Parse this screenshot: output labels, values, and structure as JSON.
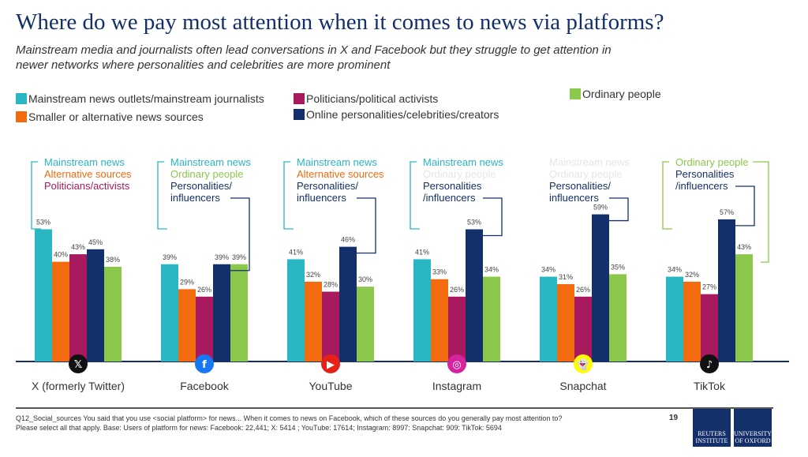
{
  "title": "Where do we pay most attention when it comes to news via platforms?",
  "subtitle": "Mainstream media and journalists often lead conversations in X and Facebook but they struggle to get attention in newer networks where personalities and celebrities are more prominent",
  "legend": [
    {
      "label": "Mainstream news outlets/mainstream journalists",
      "color": "#2ab7c4"
    },
    {
      "label": "Smaller or alternative news sources",
      "color": "#f26b0f"
    },
    {
      "label": "Politicians/political activists",
      "color": "#a8195e"
    },
    {
      "label": "Online personalities/celebrities/creators",
      "color": "#13306b"
    },
    {
      "label": "Ordinary people",
      "color": "#8cc84b"
    }
  ],
  "chart_data": {
    "type": "bar",
    "categories": [
      "X (formerly Twitter)",
      "Facebook",
      "YouTube",
      "Instagram",
      "Snapchat",
      "TikTok"
    ],
    "icons": [
      "x-logo-icon",
      "facebook-icon",
      "youtube-icon",
      "instagram-icon",
      "snapchat-icon",
      "tiktok-icon"
    ],
    "series": [
      {
        "name": "Mainstream news outlets/mainstream journalists",
        "color": "#2ab7c4",
        "values": [
          53,
          39,
          41,
          41,
          34,
          34
        ]
      },
      {
        "name": "Smaller or alternative news sources",
        "color": "#f26b0f",
        "values": [
          40,
          29,
          32,
          33,
          31,
          32
        ]
      },
      {
        "name": "Politicians/political activists",
        "color": "#a8195e",
        "values": [
          43,
          26,
          28,
          26,
          26,
          27
        ]
      },
      {
        "name": "Online personalities/celebrities/creators",
        "color": "#13306b",
        "values": [
          45,
          39,
          46,
          53,
          59,
          57
        ]
      },
      {
        "name": "Ordinary people",
        "color": "#8cc84b",
        "values": [
          38,
          39,
          30,
          34,
          35,
          43
        ]
      }
    ],
    "value_suffix": "%",
    "annotations": [
      [
        {
          "text": "Mainstream news",
          "color": "#2ab7c4"
        },
        {
          "text": "Alternative sources",
          "color": "#f26b0f"
        },
        {
          "text": "Politicians/activists",
          "color": "#a8195e"
        }
      ],
      [
        {
          "text": "Mainstream news",
          "color": "#2ab7c4"
        },
        {
          "text": "Ordinary people",
          "color": "#8cc84b"
        },
        {
          "text": "Personalities/",
          "color": "#13306b"
        },
        {
          "text": "influencers",
          "color": "#13306b"
        }
      ],
      [
        {
          "text": "Mainstream news",
          "color": "#2ab7c4"
        },
        {
          "text": "Alternative sources",
          "color": "#f26b0f"
        },
        {
          "text": "Personalities/",
          "color": "#13306b"
        },
        {
          "text": "influencers",
          "color": "#13306b"
        }
      ],
      [
        {
          "text": "Mainstream news",
          "color": "#2ab7c4"
        },
        {
          "text": "Ordinary people",
          "color": "#e6e6e6"
        },
        {
          "text": "Personalities",
          "color": "#13306b"
        },
        {
          "text": "/influencers",
          "color": "#13306b"
        }
      ],
      [
        {
          "text": "Mainstream news",
          "color": "#e6e6e6"
        },
        {
          "text": "Ordinary people",
          "color": "#e6e6e6"
        },
        {
          "text": "Personalities/",
          "color": "#13306b"
        },
        {
          "text": "influencers",
          "color": "#13306b"
        }
      ],
      [
        {
          "text": "Ordinary people",
          "color": "#8cc84b"
        },
        {
          "text": "Personalities",
          "color": "#13306b"
        },
        {
          "text": "/influencers",
          "color": "#13306b"
        }
      ]
    ]
  },
  "footnote": [
    "Q12_Social_sources You said that you use <social platform> for news... When it comes to news on Facebook, which of these sources do you generally pay most attention to?",
    "Please select all that apply. Base: Users of platform for news: Facebook: 22,441;  X: 5414 ; YouTube: 17614; Instagram: 8997: Snapchat: 909: TikTok: 5694"
  ],
  "page_number": "19",
  "logos": [
    "REUTERS INSTITUTE",
    "UNIVERSITY OF OXFORD"
  ]
}
